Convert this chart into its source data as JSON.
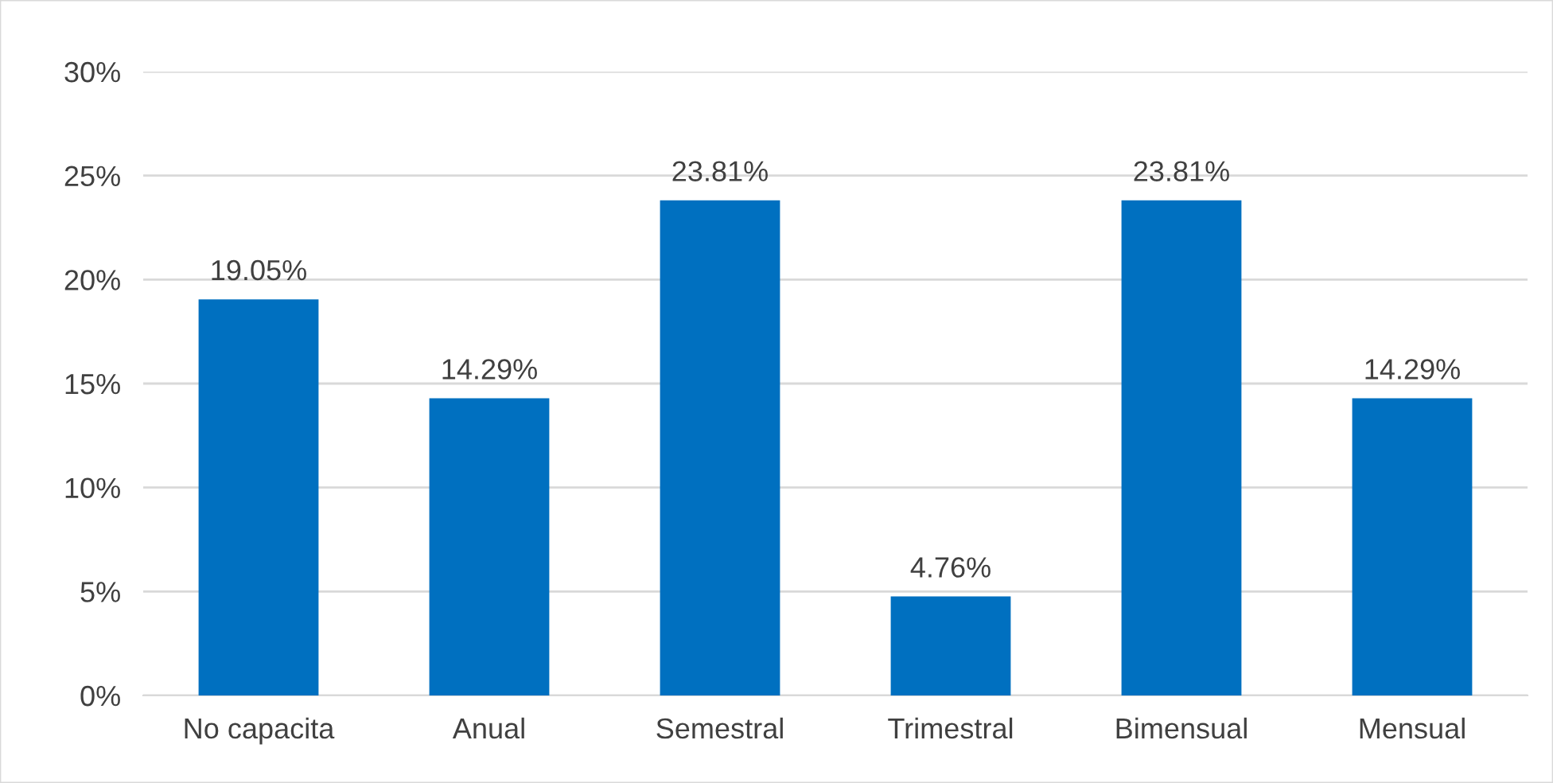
{
  "chart_data": {
    "type": "bar",
    "categories": [
      "No capacita",
      "Anual",
      "Semestral",
      "Trimestral",
      "Bimensual",
      "Mensual"
    ],
    "values": [
      19.05,
      14.29,
      23.81,
      4.76,
      23.81,
      14.29
    ],
    "value_labels": [
      "19.05%",
      "14.29%",
      "23.81%",
      "4.76%",
      "23.81%",
      "14.29%"
    ],
    "color": "#0070c0",
    "ylim": [
      0,
      30
    ],
    "yticks": [
      {
        "value": 0,
        "label": "0%"
      },
      {
        "value": 5,
        "label": "5%"
      },
      {
        "value": 10,
        "label": "10%"
      },
      {
        "value": 15,
        "label": "15%"
      },
      {
        "value": 20,
        "label": "20%"
      },
      {
        "value": 25,
        "label": "25%"
      },
      {
        "value": 30,
        "label": "30%"
      }
    ],
    "grid": "y"
  }
}
